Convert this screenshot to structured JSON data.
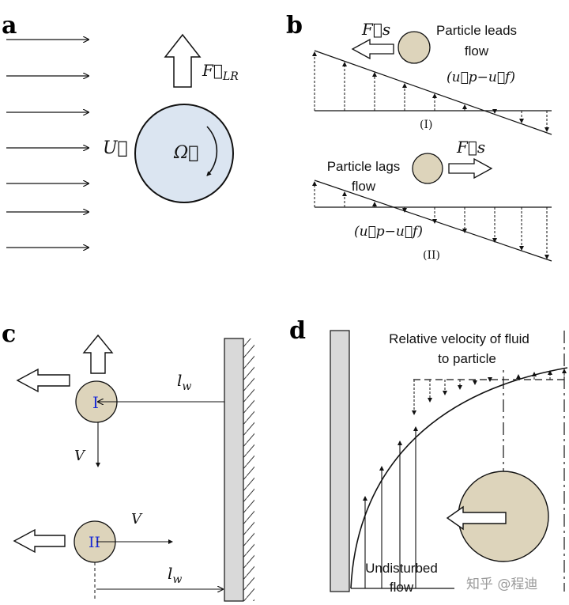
{
  "panels": {
    "a": {
      "letter": "a",
      "force_label": "F⃗LR",
      "force_sub": "LR",
      "flow_label": "U⃗",
      "rotation_label": "Ω⃗"
    },
    "b": {
      "letter": "b",
      "force_label_top": "F⃗s",
      "force_label_bottom": "F⃗s",
      "lead_line1": "Particle leads",
      "lead_line2": "flow",
      "rel_vel_top": "(u⃗p−u⃗f)",
      "case1": "(I)",
      "lag_line1": "Particle lags",
      "lag_line2": "flow",
      "rel_vel_bottom": "(u⃗p−u⃗f)",
      "case2": "(II)"
    },
    "c": {
      "letter": "c",
      "distance_top": "lw",
      "distance_bottom": "lw",
      "velocity_top": "V",
      "velocity_bottom": "V",
      "particle1": "I",
      "particle2": "II"
    },
    "d": {
      "letter": "d",
      "caption_line1": "Relative velocity of fluid",
      "caption_line2": "to particle",
      "bottom_line1": "Undisturbed",
      "bottom_line2": "flow"
    }
  },
  "watermark": "知乎 @程迪",
  "colors": {
    "particle_a": "#dbe5f1",
    "particle": "#ddd4bb",
    "wall": "#d9d9d9",
    "label_blue": "#1a2bd6"
  }
}
